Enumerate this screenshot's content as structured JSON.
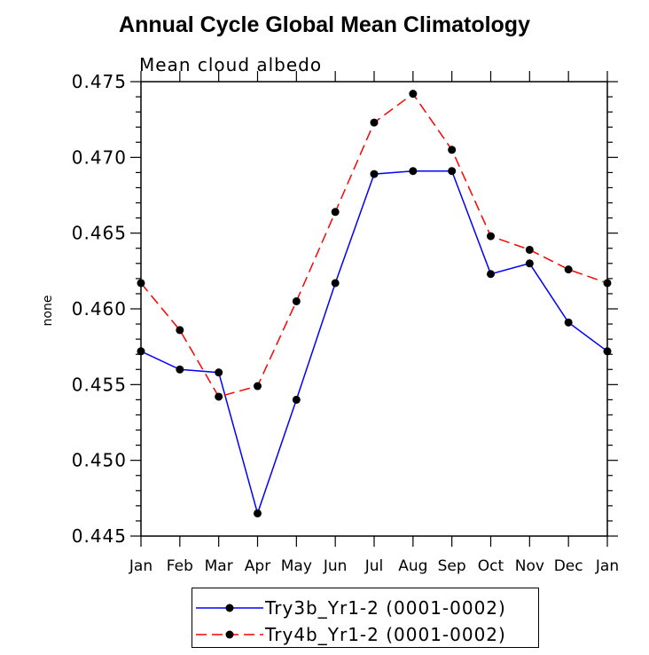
{
  "chart_data": {
    "type": "line",
    "title": "Annual Cycle Global Mean Climatology",
    "subtitle": "Mean cloud albedo",
    "xlabel": "",
    "ylabel": "none",
    "categories": [
      "Jan",
      "Feb",
      "Mar",
      "Apr",
      "May",
      "Jun",
      "Jul",
      "Aug",
      "Sep",
      "Oct",
      "Nov",
      "Dec",
      "Jan"
    ],
    "ylim": [
      0.445,
      0.475
    ],
    "yticks": [
      "0.445",
      "0.450",
      "0.455",
      "0.460",
      "0.465",
      "0.470",
      "0.475"
    ],
    "legend_position": "bottom",
    "series": [
      {
        "name": "Try3b_Yr1-2 (0001-0002)",
        "color": "#0000ff",
        "line_style": "solid",
        "values": [
          0.4572,
          0.456,
          0.4558,
          0.4465,
          0.454,
          0.4617,
          0.4689,
          0.4691,
          0.4691,
          0.4623,
          0.463,
          0.4591,
          0.4572
        ]
      },
      {
        "name": "Try4b_Yr1-2 (0001-0002)",
        "color": "#ff0000",
        "line_style": "dashed",
        "values": [
          0.4617,
          0.4586,
          0.4542,
          0.4549,
          0.4605,
          0.4664,
          0.4723,
          0.4742,
          0.4705,
          0.4648,
          0.4639,
          0.4626,
          0.4617
        ]
      }
    ]
  }
}
